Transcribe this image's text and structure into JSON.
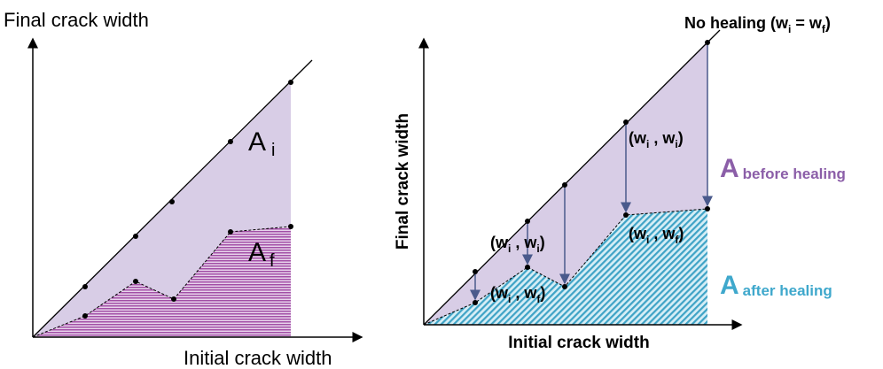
{
  "left_panel": {
    "y_axis_label": "Final crack width",
    "x_axis_label": "Initial crack width",
    "area_initial": {
      "symbol": "A",
      "subscript": "i"
    },
    "area_final": {
      "symbol": "A",
      "subscript": "f"
    }
  },
  "right_panel": {
    "y_axis_label": "Final crack width",
    "x_axis_label": "Initial crack width",
    "no_healing": {
      "text": "No healing (w",
      "sub1": "i",
      "mid": " = w",
      "sub2": "f",
      "close": ")"
    },
    "area_before": {
      "symbol": "A",
      "subscript": "before healing"
    },
    "area_after": {
      "symbol": "A",
      "subscript": "after healing"
    },
    "point_labels": [
      {
        "open": "(w",
        "sub1": "i",
        "mid": " , w",
        "sub2": "i",
        "close": ")"
      },
      {
        "open": "(w",
        "sub1": "i",
        "mid": " , w",
        "sub2": "f",
        "close": ")"
      },
      {
        "open": "(w",
        "sub1": "i",
        "mid": " , w",
        "sub2": "i",
        "close": ")"
      },
      {
        "open": "(w",
        "sub1": "i",
        "mid": " , w",
        "sub2": "f",
        "close": ")"
      }
    ]
  }
}
